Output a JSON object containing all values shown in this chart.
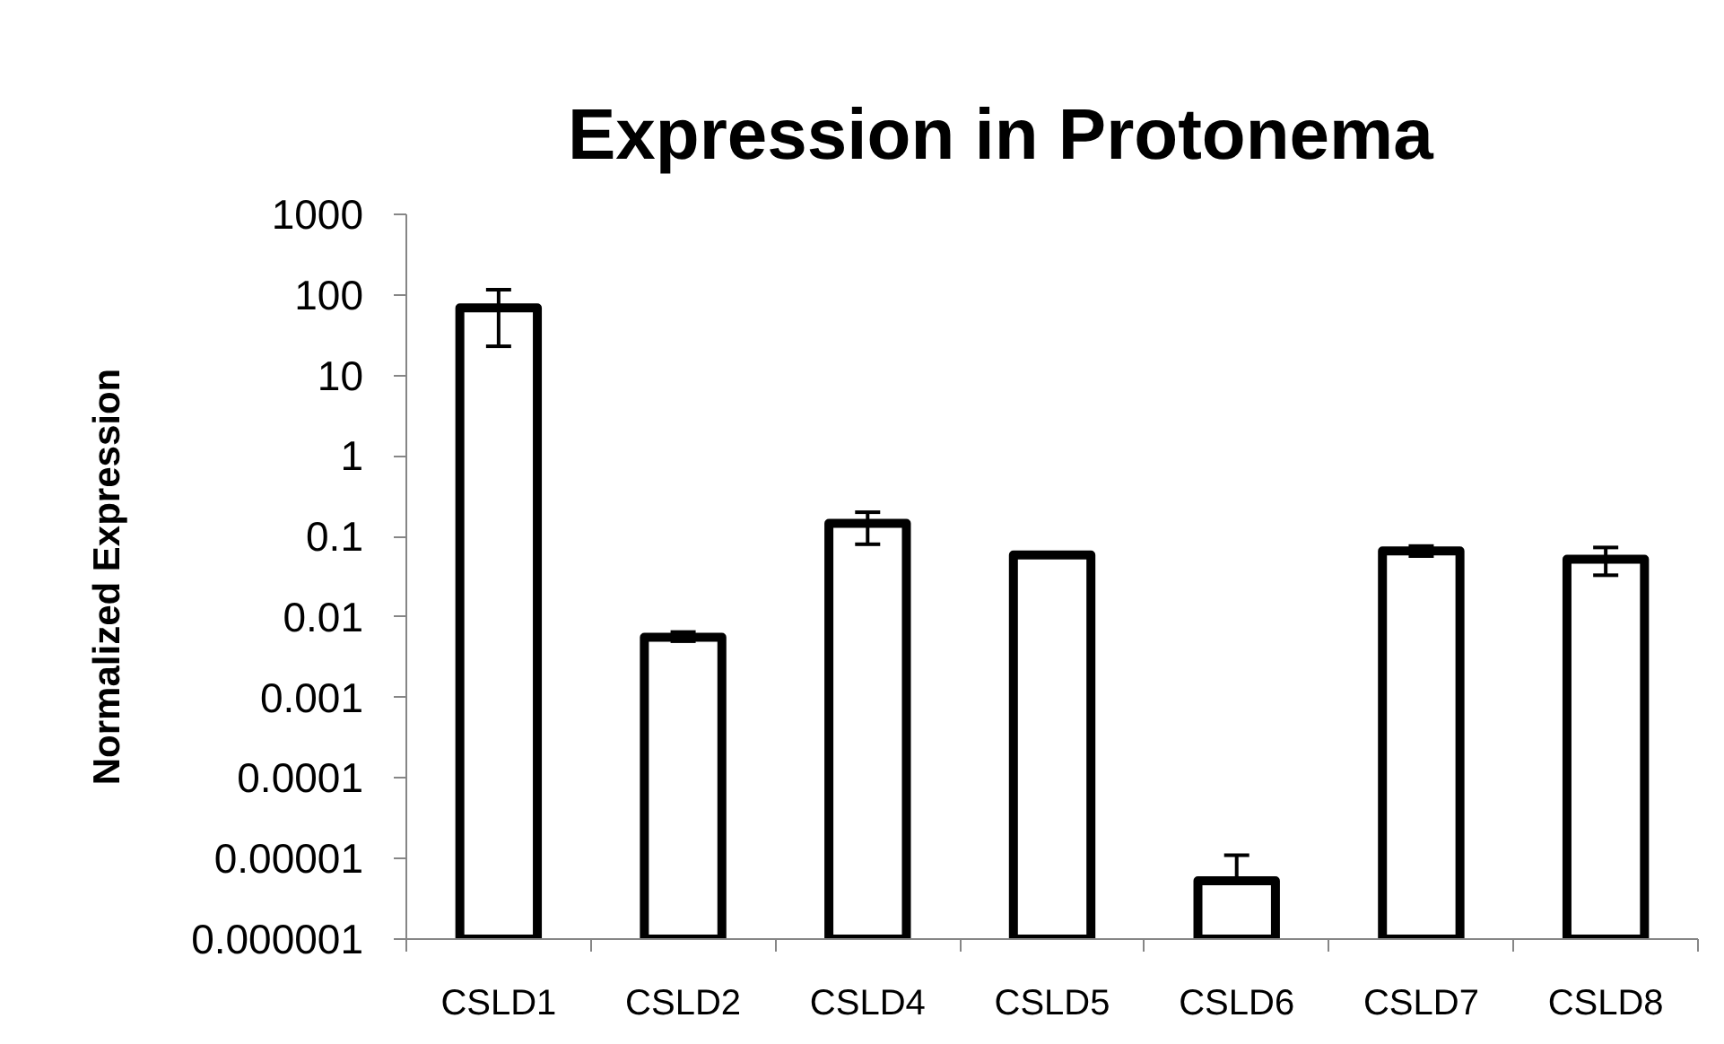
{
  "chart_data": {
    "type": "bar",
    "title": "Expression in Protonema",
    "ylabel": "Normalized Expression",
    "categories": [
      "CSLD1",
      "CSLD2",
      "CSLD4",
      "CSLD5",
      "CSLD6",
      "CSLD7",
      "CSLD8"
    ],
    "values": [
      69,
      0.0056,
      0.145,
      0.059,
      5.3e-06,
      0.066,
      0.052
    ],
    "errors": [
      [
        23,
        116
      ],
      [
        0.005,
        0.0065
      ],
      [
        0.08,
        0.2
      ],
      null,
      [
        5.3e-06,
        1.1e-05
      ],
      [
        0.057,
        0.076
      ],
      [
        0.033,
        0.073
      ]
    ],
    "color": "#ffffff",
    "log": true,
    "ylim": [
      1e-06,
      1000
    ],
    "yticks": [
      {
        "value": 1e-06,
        "label": "0.000001"
      },
      {
        "value": 1e-05,
        "label": "0.00001"
      },
      0.0001,
      0.001,
      0.01,
      0.1,
      1,
      10,
      100,
      1000
    ],
    "grid": false
  }
}
